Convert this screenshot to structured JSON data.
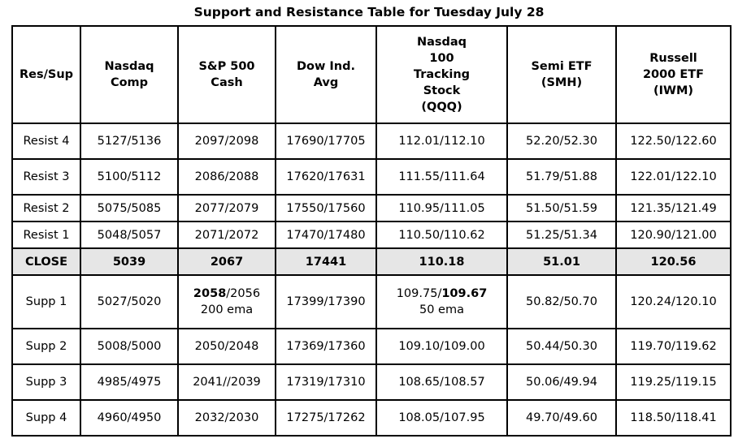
{
  "title": "Support and Resistance Table for Tuesday July 28",
  "headers": [
    [
      "Res/Sup"
    ],
    [
      "Nasdaq",
      "Comp"
    ],
    [
      "S&P 500",
      "Cash"
    ],
    [
      "Dow Ind.",
      "Avg"
    ],
    [
      "Nasdaq",
      "100",
      "Tracking",
      "Stock",
      "(QQQ)"
    ],
    [
      "Semi ETF",
      "(SMH)"
    ],
    [
      "Russell",
      "2000 ETF",
      "(IWM)"
    ]
  ],
  "rows": [
    {
      "label": "Resist 4",
      "values": [
        "5127/5136",
        "2097/2098",
        "17690/17705",
        "112.01/112.10",
        "52.20/52.30",
        "122.50/122.60"
      ]
    },
    {
      "label": "Resist 3",
      "values": [
        "5100/5112",
        "2086/2088",
        "17620/17631",
        "111.55/111.64",
        "51.79/51.88",
        "122.01/122.10"
      ]
    },
    {
      "label": "Resist 2",
      "values": [
        "5075/5085",
        "2077/2079",
        "17550/17560",
        "110.95/111.05",
        "51.50/51.59",
        "121.35/121.49"
      ]
    },
    {
      "label": "Resist 1",
      "values": [
        "5048/5057",
        "2071/2072",
        "17470/17480",
        "110.50/110.62",
        "51.25/51.34",
        "120.90/121.00"
      ]
    },
    {
      "label": "CLOSE",
      "values": [
        "5039",
        "2067",
        "17441",
        "110.18",
        "51.01",
        "120.56"
      ]
    },
    {
      "label": "Supp 1",
      "values": [
        "5027/5020",
        "",
        "17399/17390",
        "",
        "50.82/50.70",
        "120.24/120.10"
      ],
      "sp500_bold": "2058",
      "sp500_rest": "/2056",
      "sp500_note": "200 ema",
      "qqq_rest": "109.75/",
      "qqq_bold": "109.67",
      "qqq_note": "50 ema"
    },
    {
      "label": "Supp 2",
      "values": [
        "5008/5000",
        "2050/2048",
        "17369/17360",
        "109.10/109.00",
        "50.44/50.30",
        "119.70/119.62"
      ]
    },
    {
      "label": "Supp 3",
      "values": [
        "4985/4975",
        "2041//2039",
        "17319/17310",
        "108.65/108.57",
        "50.06/49.94",
        "119.25/119.15"
      ]
    },
    {
      "label": "Supp 4",
      "values": [
        "4960/4950",
        "2032/2030",
        "17275/17262",
        "108.05/107.95",
        "49.70/49.60",
        "118.50/118.41"
      ]
    }
  ]
}
